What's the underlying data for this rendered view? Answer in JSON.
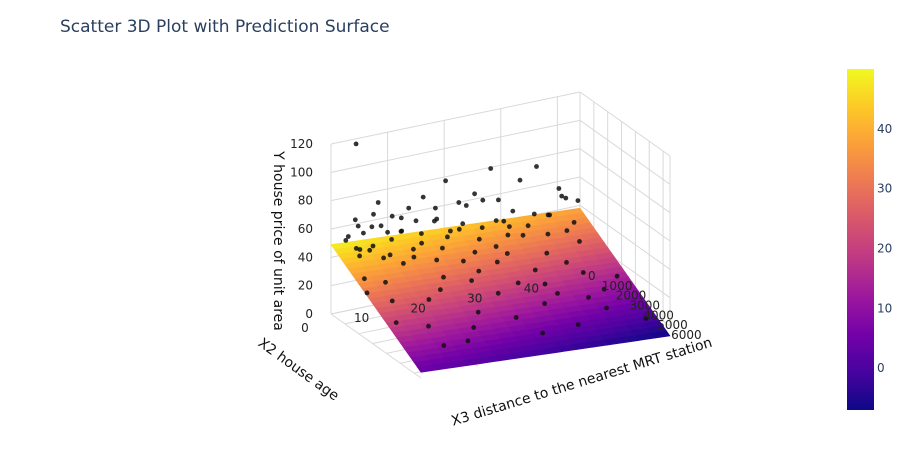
{
  "chart_data": {
    "type": "scatter3d",
    "title": "Scatter 3D Plot with Prediction Surface",
    "axes": {
      "x": {
        "label": "X3 distance to the nearest MRT station",
        "ticks": [
          0,
          1000,
          2000,
          3000,
          4000,
          5000,
          6000
        ],
        "range": [
          0,
          6500
        ]
      },
      "y": {
        "label": "X2 house age",
        "ticks": [
          0,
          10,
          20,
          30,
          40
        ],
        "range": [
          0,
          44
        ]
      },
      "z": {
        "label": "Y house price of unit area",
        "ticks": [
          0,
          20,
          40,
          60,
          80,
          100,
          120
        ],
        "range": [
          0,
          120
        ]
      }
    },
    "colorbar": {
      "ticks": [
        0,
        10,
        20,
        30,
        40
      ],
      "range": [
        -7,
        50
      ]
    },
    "surface": {
      "corners": {
        "x0_y0": 49,
        "x6500_y0": 4,
        "x0_y44": 38,
        "x6500_y44": -7
      }
    },
    "points": [
      [
        180,
        4,
        118
      ],
      [
        250,
        2,
        52
      ],
      [
        300,
        5,
        55
      ],
      [
        350,
        8,
        58
      ],
      [
        200,
        12,
        50
      ],
      [
        400,
        15,
        47
      ],
      [
        500,
        6,
        60
      ],
      [
        280,
        18,
        54
      ],
      [
        450,
        20,
        45
      ],
      [
        600,
        3,
        48
      ],
      [
        150,
        25,
        65
      ],
      [
        220,
        30,
        42
      ],
      [
        330,
        10,
        63
      ],
      [
        380,
        35,
        44
      ],
      [
        420,
        14,
        57
      ],
      [
        520,
        22,
        49
      ],
      [
        260,
        38,
        40
      ],
      [
        310,
        40,
        52
      ],
      [
        490,
        28,
        46
      ],
      [
        120,
        16,
        70
      ],
      [
        160,
        33,
        68
      ],
      [
        210,
        7,
        66
      ],
      [
        340,
        26,
        61
      ],
      [
        560,
        11,
        53
      ],
      [
        640,
        19,
        43
      ],
      [
        700,
        9,
        50
      ],
      [
        100,
        20,
        78
      ],
      [
        130,
        36,
        75
      ],
      [
        90,
        28,
        80
      ],
      [
        170,
        12,
        59
      ],
      [
        240,
        22,
        62
      ],
      [
        620,
        30,
        41
      ],
      [
        750,
        5,
        46
      ],
      [
        820,
        14,
        44
      ],
      [
        900,
        24,
        39
      ],
      [
        1000,
        8,
        42
      ],
      [
        1100,
        17,
        40
      ],
      [
        1200,
        31,
        38
      ],
      [
        1350,
        6,
        44
      ],
      [
        1500,
        15,
        36
      ],
      [
        1700,
        27,
        32
      ],
      [
        1900,
        10,
        45
      ],
      [
        2100,
        33,
        30
      ],
      [
        2300,
        4,
        35
      ],
      [
        2500,
        20,
        31
      ],
      [
        3000,
        12,
        28
      ],
      [
        3300,
        25,
        24
      ],
      [
        3800,
        8,
        30
      ],
      [
        4100,
        30,
        18
      ],
      [
        4500,
        15,
        20
      ],
      [
        5000,
        5,
        22
      ],
      [
        5200,
        20,
        17
      ],
      [
        5600,
        35,
        14
      ],
      [
        6300,
        22,
        12
      ],
      [
        6400,
        40,
        8
      ],
      [
        4200,
        38,
        15
      ],
      [
        3500,
        42,
        16
      ],
      [
        2700,
        35,
        26
      ],
      [
        1600,
        40,
        29
      ],
      [
        800,
        41,
        36
      ],
      [
        950,
        36,
        33
      ],
      [
        1250,
        2,
        48
      ],
      [
        2000,
        1,
        38
      ],
      [
        2600,
        0,
        33
      ],
      [
        3200,
        3,
        29
      ],
      [
        4300,
        1,
        23
      ],
      [
        5800,
        10,
        13
      ],
      [
        6000,
        29,
        10
      ],
      [
        4800,
        26,
        19
      ],
      [
        3900,
        20,
        25
      ],
      [
        2900,
        29,
        27
      ],
      [
        2200,
        24,
        32
      ],
      [
        1400,
        22,
        35
      ],
      [
        1100,
        39,
        34
      ],
      [
        700,
        25,
        45
      ],
      [
        560,
        37,
        43
      ],
      [
        430,
        2,
        56
      ],
      [
        370,
        23,
        60
      ],
      [
        120,
        4,
        64
      ],
      [
        140,
        8,
        73
      ],
      [
        240,
        29,
        58
      ],
      [
        300,
        13,
        66
      ],
      [
        460,
        31,
        50
      ],
      [
        520,
        17,
        55
      ],
      [
        580,
        6,
        47
      ],
      [
        680,
        21,
        47
      ],
      [
        750,
        33,
        40
      ],
      [
        860,
        3,
        49
      ],
      [
        920,
        29,
        38
      ],
      [
        1050,
        12,
        43
      ],
      [
        1300,
        26,
        35
      ],
      [
        1550,
        9,
        39
      ],
      [
        1800,
        19,
        34
      ],
      [
        2400,
        14,
        31
      ],
      [
        2800,
        18,
        28
      ],
      [
        3600,
        29,
        22
      ],
      [
        4700,
        34,
        16
      ],
      [
        5400,
        12,
        18
      ],
      [
        6100,
        5,
        16
      ],
      [
        3100,
        37,
        20
      ],
      [
        200,
        41,
        49
      ],
      [
        110,
        40,
        56
      ],
      [
        260,
        43,
        46
      ],
      [
        180,
        18,
        61
      ],
      [
        330,
        4,
        61
      ],
      [
        410,
        9,
        53
      ]
    ]
  }
}
